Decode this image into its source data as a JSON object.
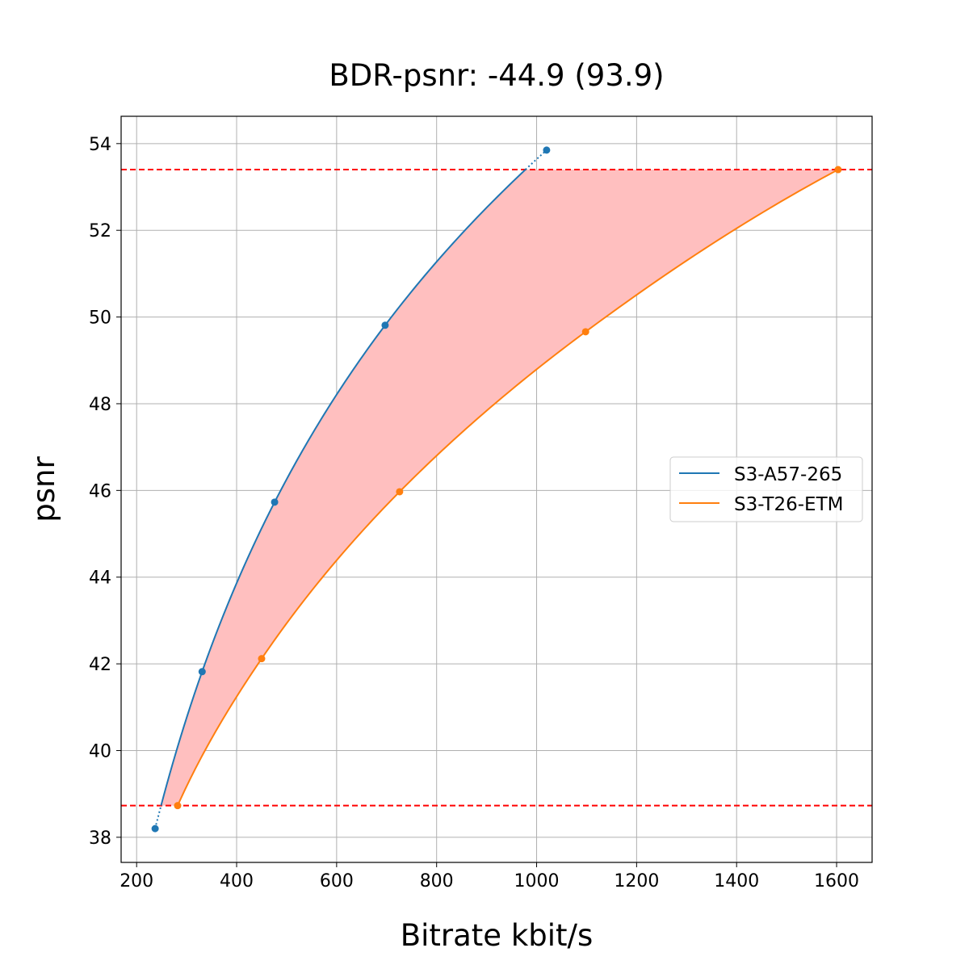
{
  "chart_data": {
    "type": "line",
    "title": "BDR-psnr: -44.9 (93.9)",
    "xlabel": "Bitrate kbit/s",
    "ylabel": "psnr",
    "xlim": [
      169,
      1671
    ],
    "ylim": [
      37.42,
      54.63
    ],
    "xticks": [
      200,
      400,
      600,
      800,
      1000,
      1200,
      1400,
      1600
    ],
    "yticks": [
      38,
      40,
      42,
      44,
      46,
      48,
      50,
      52,
      54
    ],
    "grid": true,
    "legend_position": "center-right",
    "series": [
      {
        "name": "S3-A57-265",
        "color": "#1f77b4",
        "x": [
          237,
          331,
          476,
          697,
          1020
        ],
        "y": [
          38.2,
          41.82,
          45.73,
          49.81,
          53.85
        ]
      },
      {
        "name": "S3-T26-ETM",
        "color": "#ff7f0e",
        "x": [
          282,
          450,
          726,
          1098,
          1603
        ],
        "y": [
          38.73,
          42.12,
          45.97,
          49.66,
          53.4
        ]
      }
    ],
    "reference_lines": {
      "color": "#ff0000",
      "style": "dashed",
      "y": [
        38.73,
        53.4
      ]
    },
    "fill_between": {
      "color": "#ffbfbf",
      "y_range": [
        38.73,
        53.4
      ]
    }
  }
}
